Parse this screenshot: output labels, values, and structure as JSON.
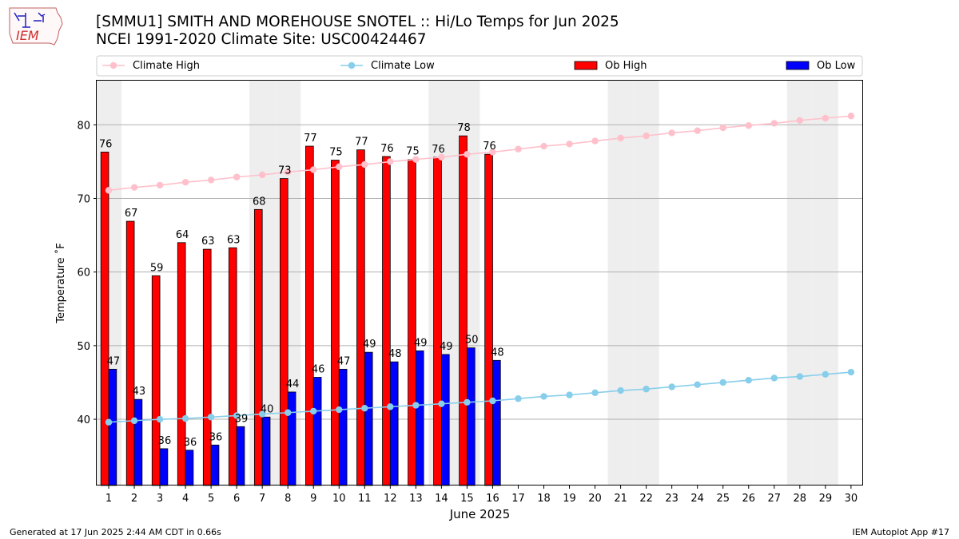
{
  "header": {
    "title_line1": "[SMMU1] SMITH AND MOREHOUSE SNOTEL :: Hi/Lo Temps for Jun 2025",
    "title_line2": "NCEI 1991-2020 Climate Site: USC00424467",
    "logo_text": "IEM"
  },
  "footer": {
    "generated": "Generated at 17 Jun 2025 2:44 AM CDT in 0.66s",
    "app": "IEM Autoplot App #17"
  },
  "chart_data": {
    "type": "bar",
    "xlabel": "June 2025",
    "ylabel": "Temperature ˚F",
    "ylim": [
      31,
      86
    ],
    "yticks": [
      40,
      50,
      60,
      70,
      80
    ],
    "days": [
      1,
      2,
      3,
      4,
      5,
      6,
      7,
      8,
      9,
      10,
      11,
      12,
      13,
      14,
      15,
      16,
      17,
      18,
      19,
      20,
      21,
      22,
      23,
      24,
      25,
      26,
      27,
      28,
      29,
      30
    ],
    "weekend_shading_days": [
      1,
      7,
      8,
      14,
      15,
      21,
      22,
      28,
      29
    ],
    "grid": "horizontal",
    "legend_placement": "top",
    "series": [
      {
        "name": "Climate High",
        "kind": "line",
        "color": "#ffc0cb",
        "values": [
          71.1,
          71.5,
          71.8,
          72.2,
          72.5,
          72.9,
          73.2,
          73.6,
          73.9,
          74.3,
          74.6,
          75.0,
          75.3,
          75.6,
          76.0,
          76.3,
          76.7,
          77.1,
          77.4,
          77.8,
          78.2,
          78.5,
          78.9,
          79.2,
          79.6,
          79.9,
          80.2,
          80.6,
          80.9,
          81.2
        ]
      },
      {
        "name": "Climate Low",
        "kind": "line",
        "color": "#87ceeb",
        "values": [
          39.6,
          39.8,
          40.0,
          40.1,
          40.3,
          40.5,
          40.7,
          40.9,
          41.1,
          41.3,
          41.5,
          41.7,
          41.9,
          42.1,
          42.3,
          42.5,
          42.8,
          43.1,
          43.3,
          43.6,
          43.9,
          44.1,
          44.4,
          44.7,
          45.0,
          45.3,
          45.6,
          45.8,
          46.1,
          46.4
        ]
      },
      {
        "name": "Ob High",
        "kind": "bar",
        "color": "#ff0000",
        "values": [
          76.3,
          66.9,
          59.5,
          64.0,
          63.1,
          63.3,
          68.5,
          72.7,
          77.1,
          75.2,
          76.6,
          75.7,
          75.3,
          75.6,
          78.5,
          76.0
        ],
        "labels": [
          "76",
          "67",
          "59",
          "64",
          "63",
          "63",
          "68",
          "73",
          "77",
          "75",
          "77",
          "76",
          "75",
          "76",
          "78",
          "76"
        ]
      },
      {
        "name": "Ob Low",
        "kind": "bar",
        "color": "#0000ff",
        "values": [
          46.8,
          42.7,
          36.0,
          35.8,
          36.5,
          39.0,
          40.3,
          43.7,
          45.7,
          46.8,
          49.1,
          47.8,
          49.3,
          48.8,
          49.7,
          48.0
        ],
        "labels": [
          "47",
          "43",
          "36",
          "36",
          "36",
          "39",
          "40",
          "44",
          "46",
          "47",
          "49",
          "48",
          "49",
          "49",
          "50",
          "48"
        ]
      }
    ]
  }
}
